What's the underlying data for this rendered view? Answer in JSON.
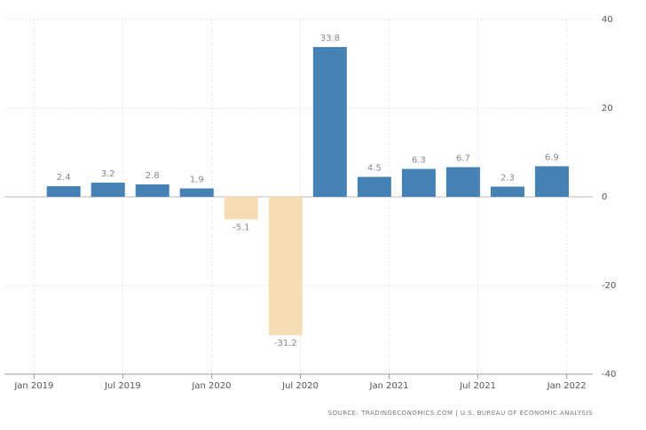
{
  "chart_data": {
    "type": "bar",
    "x": [
      "2019-03",
      "2019-06",
      "2019-09",
      "2019-12",
      "2020-03",
      "2020-06",
      "2020-09",
      "2020-12",
      "2021-03",
      "2021-06",
      "2021-09",
      "2021-12"
    ],
    "values": [
      2.4,
      3.2,
      2.8,
      1.9,
      -5.1,
      -31.2,
      33.8,
      4.5,
      6.3,
      6.7,
      2.3,
      6.9
    ],
    "color": "#4682b4",
    "negative_color": "#f5deb3",
    "xlim": [
      "2018-11",
      "2022-03"
    ],
    "xticks": [
      {
        "value": "2019-01",
        "label": "Jan 2019"
      },
      {
        "value": "2019-07",
        "label": "Jul 2019"
      },
      {
        "value": "2020-01",
        "label": "Jan 2020"
      },
      {
        "value": "2020-07",
        "label": "Jul 2020"
      },
      {
        "value": "2021-01",
        "label": "Jan 2021"
      },
      {
        "value": "2021-07",
        "label": "Jul 2021"
      },
      {
        "value": "2022-01",
        "label": "Jan 2022"
      }
    ],
    "ylim": [
      -40,
      40
    ],
    "yticks": [
      -40,
      -20,
      0,
      20,
      40
    ],
    "grid": true,
    "source": "SOURCE: TRADINGECONOMICS.COM | U.S. BUREAU OF ECONOMIC ANALYSIS"
  }
}
